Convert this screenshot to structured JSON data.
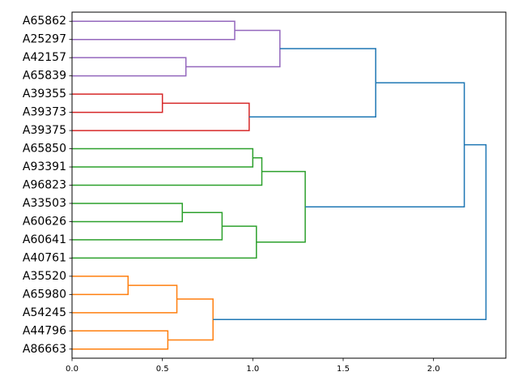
{
  "chart_data": {
    "type": "dendrogram",
    "orientation": "horizontal",
    "xlim": [
      0,
      2.4
    ],
    "x_ticks": [
      0.0,
      0.5,
      1.0,
      1.5,
      2.0
    ],
    "x_tick_labels": [
      "0.0",
      "0.5",
      "1.0",
      "1.5",
      "2.0"
    ],
    "leaves": [
      "A65862",
      "A25297",
      "A42157",
      "A65839",
      "A39355",
      "A39373",
      "A39375",
      "A65850",
      "A93391",
      "A96823",
      "A33503",
      "A60626",
      "A60641",
      "A40761",
      "A35520",
      "A65980",
      "A54245",
      "A44796",
      "A86663"
    ],
    "colors": {
      "purple": "#9467bd",
      "red": "#d62728",
      "green": "#2ca02c",
      "orange": "#ff7f0e",
      "above_threshold": "#1f77b4"
    },
    "merges": [
      {
        "a": "A65862",
        "b": "A25297",
        "height": 0.9,
        "color": "purple"
      },
      {
        "a": "A42157",
        "b": "A65839",
        "height": 0.63,
        "color": "purple"
      },
      {
        "a": 0,
        "b": 1,
        "height": 1.15,
        "color": "purple"
      },
      {
        "a": "A39355",
        "b": "A39373",
        "height": 0.5,
        "color": "red"
      },
      {
        "a": 3,
        "b": "A39375",
        "height": 0.98,
        "color": "red"
      },
      {
        "a": 2,
        "b": 4,
        "height": 1.68,
        "color": "above_threshold"
      },
      {
        "a": "A65850",
        "b": "A93391",
        "height": 1.0,
        "color": "green"
      },
      {
        "a": 6,
        "b": "A96823",
        "height": 1.05,
        "color": "green"
      },
      {
        "a": "A33503",
        "b": "A60626",
        "height": 0.61,
        "color": "green"
      },
      {
        "a": 8,
        "b": "A60641",
        "height": 0.83,
        "color": "green"
      },
      {
        "a": 9,
        "b": "A40761",
        "height": 1.02,
        "color": "green"
      },
      {
        "a": 7,
        "b": 10,
        "height": 1.29,
        "color": "green"
      },
      {
        "a": 5,
        "b": 11,
        "height": 2.17,
        "color": "above_threshold"
      },
      {
        "a": "A35520",
        "b": "A65980",
        "height": 0.31,
        "color": "orange"
      },
      {
        "a": 13,
        "b": "A54245",
        "height": 0.58,
        "color": "orange"
      },
      {
        "a": "A44796",
        "b": "A86663",
        "height": 0.53,
        "color": "orange"
      },
      {
        "a": 14,
        "b": 15,
        "height": 0.78,
        "color": "orange"
      },
      {
        "a": 12,
        "b": 16,
        "height": 2.29,
        "color": "above_threshold"
      }
    ]
  }
}
